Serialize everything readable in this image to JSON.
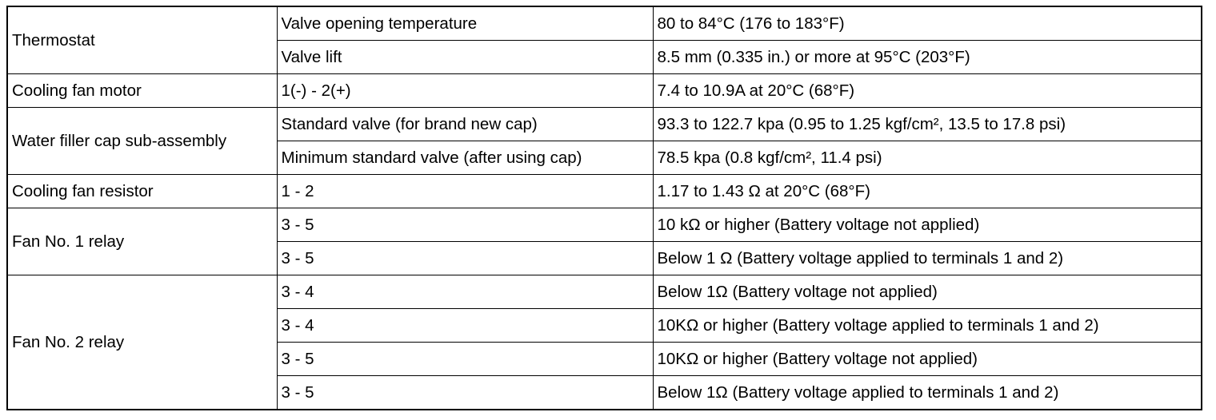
{
  "groups": [
    {
      "label": "Thermostat",
      "rows": [
        [
          "Valve opening temperature",
          "80 to 84°C (176 to 183°F)"
        ],
        [
          "Valve lift",
          "8.5 mm (0.335 in.) or more at 95°C (203°F)"
        ]
      ]
    },
    {
      "label": "Cooling fan motor",
      "rows": [
        [
          "1(-) - 2(+)",
          "7.4 to 10.9A at 20°C (68°F)"
        ]
      ]
    },
    {
      "label": "Water filler cap sub-assembly",
      "rows": [
        [
          "Standard valve (for brand new cap)",
          "93.3 to 122.7 kpa (0.95 to 1.25 kgf/cm², 13.5 to 17.8 psi)"
        ],
        [
          "Minimum standard valve (after using cap)",
          "78.5 kpa (0.8 kgf/cm², 11.4 psi)"
        ]
      ]
    },
    {
      "label": "Cooling fan resistor",
      "rows": [
        [
          "1 - 2",
          "1.17 to 1.43 Ω at 20°C (68°F)"
        ]
      ]
    },
    {
      "label": "Fan No. 1 relay",
      "rows": [
        [
          "3 - 5",
          "10 kΩ or higher (Battery voltage not applied)"
        ],
        [
          "3 - 5",
          "Below 1 Ω (Battery voltage applied to terminals 1 and 2)"
        ]
      ]
    },
    {
      "label": "Fan No. 2 relay",
      "rows": [
        [
          "3 - 4",
          "Below 1Ω (Battery voltage not applied)"
        ],
        [
          "3 - 4",
          "10KΩ or higher (Battery voltage applied to terminals 1 and 2)"
        ],
        [
          "3 - 5",
          "10KΩ or higher (Battery voltage not applied)"
        ],
        [
          "3 - 5",
          "Below 1Ω (Battery voltage applied to terminals 1 and 2)"
        ]
      ]
    }
  ]
}
